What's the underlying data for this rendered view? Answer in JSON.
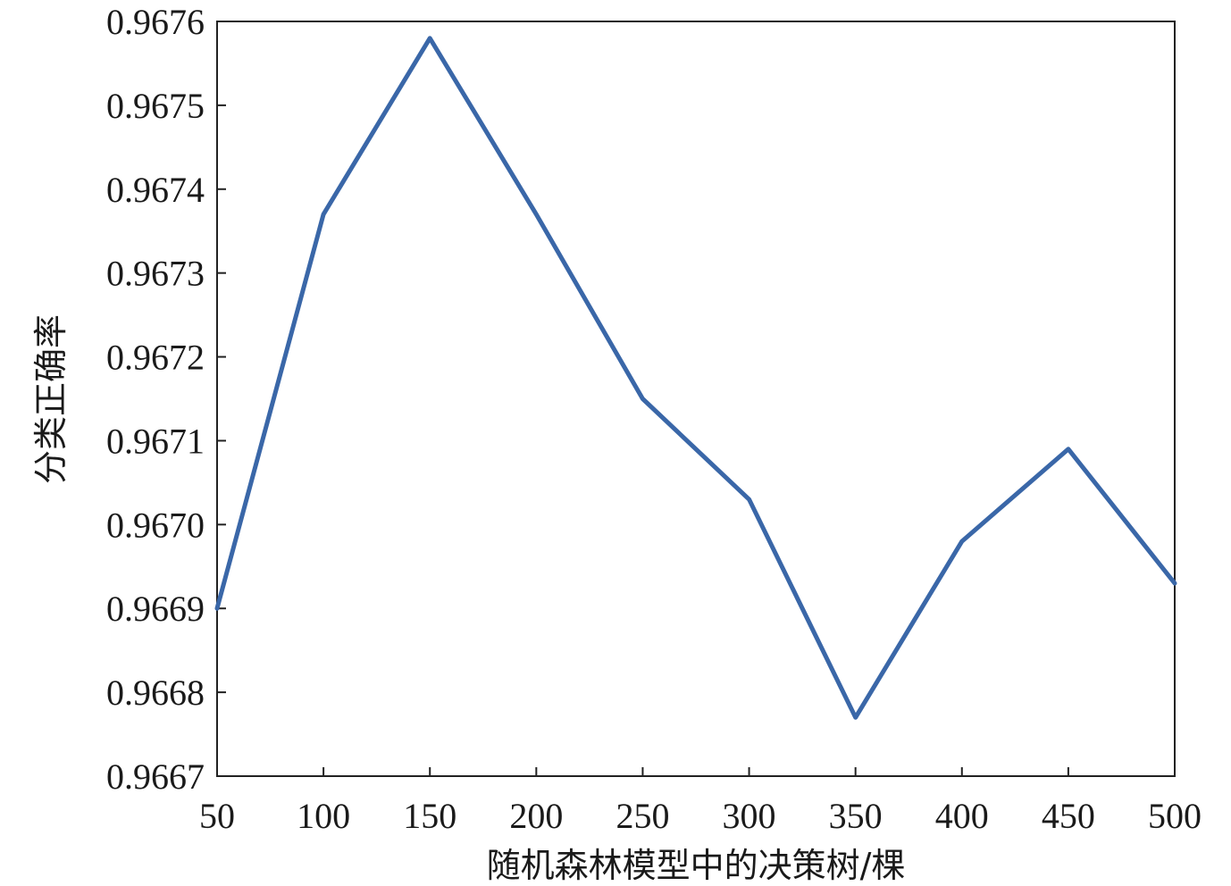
{
  "chart_data": {
    "type": "line",
    "title": "",
    "xlabel": "随机森林模型中的决策树/棵",
    "ylabel": "分类正确率",
    "xlim": [
      50,
      500
    ],
    "ylim": [
      0.9667,
      0.9676
    ],
    "x_ticks": [
      "50",
      "100",
      "150",
      "200",
      "250",
      "300",
      "350",
      "400",
      "450",
      "500"
    ],
    "y_ticks": [
      "0.9667",
      "0.9668",
      "0.9669",
      "0.9670",
      "0.9671",
      "0.9672",
      "0.9673",
      "0.9674",
      "0.9675",
      "0.9676"
    ],
    "grid": false,
    "legend": "none",
    "series": [
      {
        "color": "#3a67a8",
        "x": [
          50,
          100,
          150,
          200,
          250,
          300,
          350,
          400,
          450,
          500
        ],
        "y": [
          0.9669,
          0.96737,
          0.96758,
          0.96737,
          0.96715,
          0.96703,
          0.96677,
          0.96698,
          0.96709,
          0.96693
        ]
      }
    ]
  }
}
